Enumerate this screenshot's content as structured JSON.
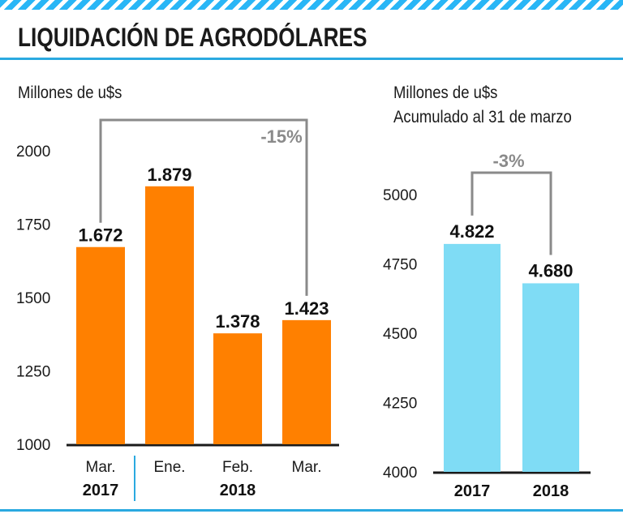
{
  "title": "LIQUIDACIÓN DE AGRODÓLARES",
  "colors": {
    "left_bars": "#ff8000",
    "right_bars": "#7fdcf5",
    "accent": "#2aa9e0",
    "bracket": "#8a8a8a"
  },
  "chart_data": [
    {
      "type": "bar",
      "unit_label": "Millones de u$s",
      "categories": [
        "Mar.",
        "Ene.",
        "Feb.",
        "Mar."
      ],
      "year_groups": [
        {
          "label": "2017",
          "categories": [
            "Mar."
          ]
        },
        {
          "label": "2018",
          "categories": [
            "Ene.",
            "Feb.",
            "Mar."
          ]
        }
      ],
      "values": [
        1672,
        1879,
        1378,
        1423
      ],
      "value_labels": [
        "1.672",
        "1.879",
        "1.378",
        "1.423"
      ],
      "ylim": [
        1000,
        2000
      ],
      "yticks": [
        "1000",
        "1250",
        "1500",
        "1750",
        "2000"
      ],
      "annotation": "-15%",
      "bar_color": "#ff8000",
      "grid": false
    },
    {
      "type": "bar",
      "unit_label": [
        "Millones de u$s",
        "Acumulado al 31 de marzo"
      ],
      "categories": [
        "2017",
        "2018"
      ],
      "values": [
        4822,
        4680
      ],
      "value_labels": [
        "4.822",
        "4.680"
      ],
      "ylim": [
        4000,
        5000
      ],
      "yticks": [
        "4000",
        "4250",
        "4500",
        "4750",
        "5000"
      ],
      "annotation": "-3%",
      "bar_color": "#7fdcf5",
      "grid": false
    }
  ]
}
